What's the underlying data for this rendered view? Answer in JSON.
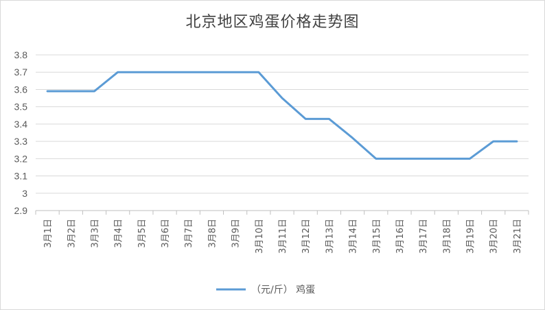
{
  "chart_data": {
    "type": "line",
    "title": "北京地区鸡蛋价格走势图",
    "categories": [
      "3月1日",
      "3月2日",
      "3月3日",
      "3月4日",
      "3月5日",
      "3月6日",
      "3月7日",
      "3月8日",
      "3月9日",
      "3月10日",
      "3月11日",
      "3月12日",
      "3月13日",
      "3月14日",
      "3月15日",
      "3月16日",
      "3月17日",
      "3月18日",
      "3月19日",
      "3月20日",
      "3月21日"
    ],
    "series": [
      {
        "name": "（元/斤） 鸡蛋",
        "color": "#5b9bd5",
        "values": [
          3.59,
          3.59,
          3.59,
          3.7,
          3.7,
          3.7,
          3.7,
          3.7,
          3.7,
          3.7,
          3.55,
          3.43,
          3.43,
          3.32,
          3.2,
          3.2,
          3.2,
          3.2,
          3.2,
          3.3,
          3.3
        ]
      }
    ],
    "ylim": [
      2.9,
      3.8
    ],
    "yticks": [
      "2.9",
      "3",
      "3.1",
      "3.2",
      "3.3",
      "3.4",
      "3.5",
      "3.6",
      "3.7",
      "3.8"
    ],
    "grid": true,
    "legend_position": "bottom"
  }
}
